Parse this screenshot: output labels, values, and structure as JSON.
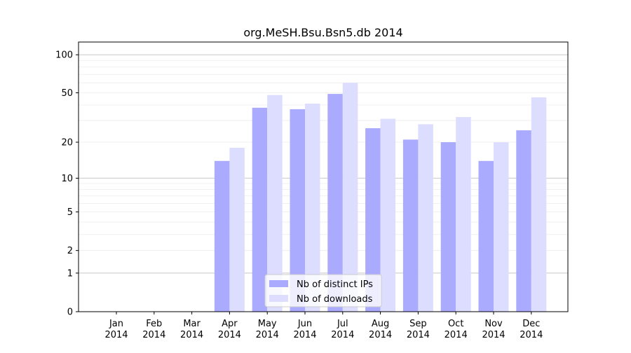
{
  "chart_data": {
    "type": "bar",
    "title": "org.MeSH.Bsu.Bsn5.db 2014",
    "xlabel": "",
    "ylabel": "",
    "yscale": "log(1+x)",
    "ylim": [
      0,
      126
    ],
    "yticks": [
      0,
      1,
      2,
      5,
      10,
      20,
      50,
      100
    ],
    "grid": true,
    "legend_placement": "bottom-center",
    "categories": [
      "Jan\n2014",
      "Feb\n2014",
      "Mar\n2014",
      "Apr\n2014",
      "May\n2014",
      "Jun\n2014",
      "Jul\n2014",
      "Aug\n2014",
      "Sep\n2014",
      "Oct\n2014",
      "Nov\n2014",
      "Dec\n2014"
    ],
    "series": [
      {
        "name": "Nb of distinct IPs",
        "color": "#aaaaff",
        "values": [
          0,
          0,
          0,
          14,
          38,
          37,
          49,
          26,
          21,
          20,
          14,
          25
        ]
      },
      {
        "name": "Nb of downloads",
        "color": "#ddddff",
        "values": [
          0,
          0,
          0,
          18,
          48,
          41,
          60,
          31,
          28,
          32,
          20,
          46
        ]
      }
    ]
  }
}
